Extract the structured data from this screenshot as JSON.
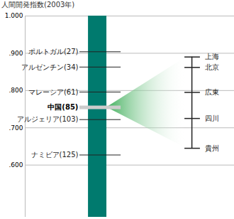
{
  "chart_data": {
    "type": "dot",
    "title": "人間開発指数(2003年)",
    "categories": [
      "ポルトガル(27)",
      "アルゼンチン(34)",
      "マレーシア(61)",
      "中国(85)",
      "アルジェリア(103)",
      "ナミビア(125)"
    ],
    "values": [
      0.904,
      0.863,
      0.796,
      0.755,
      0.722,
      0.627
    ],
    "color": "#007a6e",
    "ylim": [
      0.46,
      1.0
    ],
    "yticks": [
      {
        "value": 1.0,
        "label": "1.000"
      },
      {
        "value": 0.9,
        "label": ".900"
      },
      {
        "value": 0.8,
        "label": ".800"
      },
      {
        "value": 0.7,
        "label": ".700"
      },
      {
        "value": 0.6,
        "label": ".600"
      }
    ],
    "grid": true,
    "detail": {
      "of": "中国(85)",
      "categories": [
        "上海",
        "北京",
        "広東",
        "四川",
        "貴州"
      ],
      "values": [
        0.89,
        0.862,
        0.795,
        0.725,
        0.645
      ]
    }
  }
}
